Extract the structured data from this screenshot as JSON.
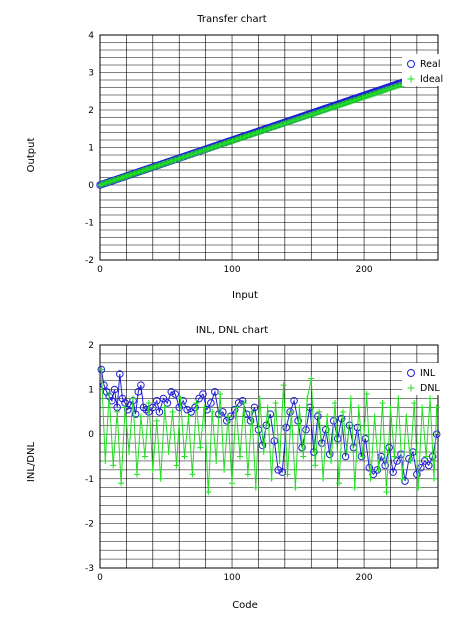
{
  "chart_data": [
    {
      "type": "scatter",
      "title": "Transfer chart",
      "xlabel": "Input",
      "ylabel": "Output",
      "xlim": [
        0,
        256
      ],
      "ylim": [
        -2,
        4
      ],
      "x_ticks": [
        0,
        100,
        200
      ],
      "y_ticks": [
        -2,
        -1,
        0,
        1,
        2,
        3,
        4
      ],
      "grid": true,
      "legend_position": "top-right",
      "series": [
        {
          "name": "Real",
          "marker": "circle",
          "color": "#1f1fd6",
          "line": {
            "x0": 0,
            "y0": 0,
            "x1": 256,
            "y1": 3.06
          },
          "n_points": 256
        },
        {
          "name": "Ideal",
          "marker": "plus",
          "color": "#22dd22",
          "line": {
            "x0": 0,
            "y0": 0,
            "x1": 256,
            "y1": 3.0
          },
          "n_points": 256
        }
      ]
    },
    {
      "type": "scatter",
      "title": "INL, DNL chart",
      "xlabel": "Code",
      "ylabel": "INL/DNL",
      "xlim": [
        0,
        256
      ],
      "ylim": [
        -3,
        2
      ],
      "x_ticks": [
        0,
        100,
        200
      ],
      "y_ticks": [
        -3,
        -2,
        -1,
        0,
        1,
        2
      ],
      "grid": true,
      "legend_position": "top-right",
      "series": [
        {
          "name": "INL",
          "marker": "circle",
          "color": "#1f1fd6",
          "points": [
            [
              1,
              1.45
            ],
            [
              3,
              1.1
            ],
            [
              5,
              0.95
            ],
            [
              7,
              0.85
            ],
            [
              9,
              0.75
            ],
            [
              11,
              1.0
            ],
            [
              13,
              0.6
            ],
            [
              15,
              1.35
            ],
            [
              17,
              0.8
            ],
            [
              19,
              0.7
            ],
            [
              21,
              0.55
            ],
            [
              23,
              0.65
            ],
            [
              25,
              0.75
            ],
            [
              27,
              0.45
            ],
            [
              29,
              0.95
            ],
            [
              31,
              1.1
            ],
            [
              33,
              0.6
            ],
            [
              35,
              0.55
            ],
            [
              37,
              0.5
            ],
            [
              40,
              0.6
            ],
            [
              43,
              0.75
            ],
            [
              45,
              0.5
            ],
            [
              48,
              0.8
            ],
            [
              51,
              0.7
            ],
            [
              54,
              0.95
            ],
            [
              57,
              0.9
            ],
            [
              60,
              0.6
            ],
            [
              63,
              0.75
            ],
            [
              66,
              0.55
            ],
            [
              69,
              0.5
            ],
            [
              72,
              0.6
            ],
            [
              75,
              0.8
            ],
            [
              78,
              0.9
            ],
            [
              81,
              0.55
            ],
            [
              84,
              0.7
            ],
            [
              87,
              0.95
            ],
            [
              90,
              0.45
            ],
            [
              93,
              0.5
            ],
            [
              96,
              0.3
            ],
            [
              99,
              0.4
            ],
            [
              102,
              0.55
            ],
            [
              105,
              0.7
            ],
            [
              108,
              0.75
            ],
            [
              111,
              0.45
            ],
            [
              114,
              0.3
            ],
            [
              117,
              0.6
            ],
            [
              120,
              0.1
            ],
            [
              123,
              -0.25
            ],
            [
              126,
              0.2
            ],
            [
              129,
              0.45
            ],
            [
              132,
              -0.15
            ],
            [
              135,
              -0.8
            ],
            [
              138,
              -0.85
            ],
            [
              141,
              0.15
            ],
            [
              144,
              0.5
            ],
            [
              147,
              0.75
            ],
            [
              150,
              0.3
            ],
            [
              153,
              -0.3
            ],
            [
              156,
              0.1
            ],
            [
              159,
              0.6
            ],
            [
              162,
              -0.4
            ],
            [
              165,
              0.4
            ],
            [
              168,
              -0.2
            ],
            [
              171,
              0.1
            ],
            [
              174,
              -0.45
            ],
            [
              177,
              0.3
            ],
            [
              180,
              -0.1
            ],
            [
              183,
              0.35
            ],
            [
              186,
              -0.5
            ],
            [
              189,
              0.2
            ],
            [
              192,
              -0.3
            ],
            [
              195,
              0.15
            ],
            [
              198,
              -0.5
            ],
            [
              201,
              -0.1
            ],
            [
              204,
              -0.75
            ],
            [
              207,
              -0.9
            ],
            [
              210,
              -0.8
            ],
            [
              213,
              -0.5
            ],
            [
              216,
              -0.7
            ],
            [
              219,
              -0.3
            ],
            [
              222,
              -0.85
            ],
            [
              225,
              -0.6
            ],
            [
              228,
              -0.45
            ],
            [
              231,
              -1.05
            ],
            [
              234,
              -0.55
            ],
            [
              237,
              -0.4
            ],
            [
              240,
              -0.9
            ],
            [
              243,
              -0.75
            ],
            [
              246,
              -0.6
            ],
            [
              249,
              -0.7
            ],
            [
              252,
              -0.5
            ],
            [
              255,
              0.0
            ]
          ]
        },
        {
          "name": "DNL",
          "marker": "plus",
          "color": "#22dd22",
          "points": [
            [
              1,
              1.45
            ],
            [
              4,
              -0.6
            ],
            [
              7,
              0.9
            ],
            [
              10,
              -0.7
            ],
            [
              13,
              0.5
            ],
            [
              16,
              -1.1
            ],
            [
              19,
              0.6
            ],
            [
              22,
              -0.4
            ],
            [
              25,
              0.8
            ],
            [
              28,
              -0.9
            ],
            [
              31,
              0.4
            ],
            [
              34,
              -0.5
            ],
            [
              37,
              0.7
            ],
            [
              40,
              -0.8
            ],
            [
              43,
              0.3
            ],
            [
              46,
              -1.0
            ],
            [
              49,
              0.6
            ],
            [
              52,
              -0.4
            ],
            [
              55,
              0.5
            ],
            [
              58,
              -0.7
            ],
            [
              61,
              0.8
            ],
            [
              64,
              -0.5
            ],
            [
              67,
              0.4
            ],
            [
              70,
              -0.9
            ],
            [
              73,
              0.7
            ],
            [
              76,
              -0.3
            ],
            [
              79,
              0.6
            ],
            [
              82,
              -1.3
            ],
            [
              85,
              0.5
            ],
            [
              88,
              -0.6
            ],
            [
              91,
              0.9
            ],
            [
              94,
              -0.8
            ],
            [
              97,
              0.4
            ],
            [
              100,
              -1.1
            ],
            [
              103,
              0.6
            ],
            [
              106,
              -0.5
            ],
            [
              109,
              0.7
            ],
            [
              112,
              -0.9
            ],
            [
              115,
              0.5
            ],
            [
              118,
              -1.2
            ],
            [
              121,
              0.8
            ],
            [
              124,
              -0.4
            ],
            [
              127,
              0.6
            ],
            [
              130,
              -1.0
            ],
            [
              133,
              0.7
            ],
            [
              136,
              -0.6
            ],
            [
              139,
              1.1
            ],
            [
              142,
              -0.9
            ],
            [
              145,
              0.5
            ],
            [
              148,
              -1.2
            ],
            [
              151,
              0.6
            ],
            [
              154,
              -0.5
            ],
            [
              157,
              0.8
            ],
            [
              160,
              1.25
            ],
            [
              163,
              -0.7
            ],
            [
              166,
              0.5
            ],
            [
              169,
              -1.0
            ],
            [
              172,
              0.4
            ],
            [
              175,
              -0.6
            ],
            [
              178,
              0.7
            ],
            [
              181,
              -1.1
            ],
            [
              184,
              0.5
            ],
            [
              187,
              -0.4
            ],
            [
              190,
              0.8
            ],
            [
              193,
              -1.2
            ],
            [
              196,
              0.6
            ],
            [
              199,
              -0.5
            ],
            [
              202,
              0.9
            ],
            [
              205,
              -1.0
            ],
            [
              208,
              0.4
            ],
            [
              211,
              -0.8
            ],
            [
              214,
              0.7
            ],
            [
              217,
              -1.3
            ],
            [
              220,
              0.6
            ],
            [
              223,
              -0.5
            ],
            [
              226,
              0.8
            ],
            [
              229,
              -1.0
            ],
            [
              232,
              0.4
            ],
            [
              235,
              -0.6
            ],
            [
              238,
              0.7
            ],
            [
              241,
              -1.2
            ],
            [
              244,
              0.6
            ],
            [
              247,
              -0.5
            ],
            [
              250,
              0.8
            ],
            [
              253,
              -1.0
            ],
            [
              255,
              0.6
            ]
          ]
        }
      ]
    }
  ]
}
